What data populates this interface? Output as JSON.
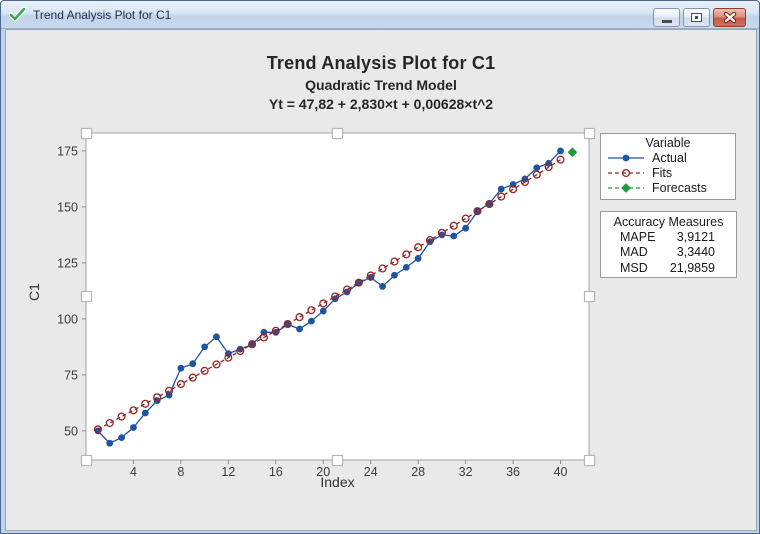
{
  "window": {
    "title": "Trend Analysis Plot for C1",
    "status_icon": "green-checkmark",
    "buttons": [
      "minimize",
      "restore",
      "close"
    ]
  },
  "chart_data": {
    "type": "line",
    "title": "Trend Analysis Plot for C1",
    "subtitle": "Quadratic Trend Model",
    "equation": "Yt = 47,82 + 2,830×t + 0,00628×t^2",
    "xlabel": "Index",
    "ylabel": "C1",
    "xlim": [
      0,
      42.4
    ],
    "ylim": [
      37,
      183
    ],
    "x_ticks": [
      4,
      8,
      12,
      16,
      20,
      24,
      28,
      32,
      36,
      40
    ],
    "y_ticks": [
      50,
      75,
      100,
      125,
      150,
      175
    ],
    "grid": false,
    "legend_position": "outside-right",
    "legend_title": "Variable",
    "series": [
      {
        "name": "Actual",
        "color": "#1F54A0",
        "line": "solid",
        "marker": "filled-circle",
        "x_start": 1,
        "values": [
          50,
          44.5,
          47,
          51.5,
          58,
          63.5,
          66,
          78,
          80,
          87.5,
          92,
          84.5,
          86.5,
          88.5,
          94,
          94,
          97.5,
          95.5,
          99,
          103.5,
          109,
          112,
          116,
          118.5,
          114.5,
          119.5,
          123,
          127,
          134.5,
          137.5,
          137,
          140.5,
          148,
          151.5,
          158,
          160,
          162.5,
          167.5,
          169.5,
          175
        ]
      },
      {
        "name": "Fits",
        "color": "#942523",
        "line": "dashed",
        "marker": "open-circle",
        "x_start": 1,
        "values": [
          50.7,
          53.5,
          56.4,
          59.2,
          62.1,
          65.0,
          67.9,
          70.9,
          73.8,
          76.8,
          79.7,
          82.7,
          85.7,
          88.7,
          91.7,
          94.7,
          97.7,
          100.8,
          103.9,
          106.9,
          110.0,
          113.1,
          116.2,
          119.4,
          122.5,
          125.6,
          128.8,
          132.0,
          135.2,
          138.4,
          141.6,
          144.8,
          148.1,
          151.3,
          154.6,
          157.9,
          161.1,
          164.4,
          167.8,
          171.1
        ]
      },
      {
        "name": "Forecasts",
        "color": "#1E9B3F",
        "line": "dashed",
        "marker": "filled-diamond",
        "x_start": 41,
        "values": [
          174.4
        ]
      }
    ]
  },
  "accuracy_measures": {
    "title": "Accuracy Measures",
    "rows": [
      {
        "label": "MAPE",
        "value": "3,9121"
      },
      {
        "label": "MAD",
        "value": "3,3440"
      },
      {
        "label": "MSD",
        "value": "21,9859"
      }
    ]
  }
}
